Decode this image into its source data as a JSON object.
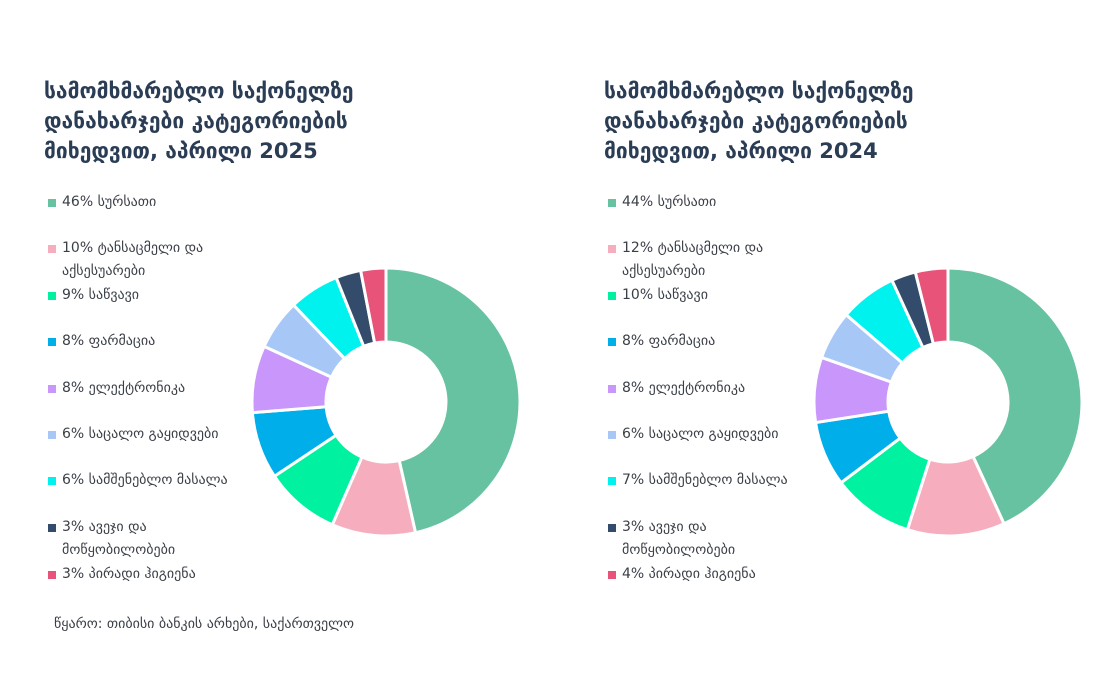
{
  "source": "წყარო: თიბისი ბანკის არხები, საქართველო",
  "colors": {
    "sursati": "#66c2a0",
    "tansacmeli": "#f6aebe",
    "sawvavi": "#00f2a1",
    "parmacia": "#00aeea",
    "elektronika": "#c996fb",
    "sacalo": "#a7c8f6",
    "samsheneblo": "#00f2ee",
    "aveji": "#344c6c",
    "hygiene": "#e8537a"
  },
  "chart_data": [
    {
      "type": "pie",
      "title": "სამომხმარებლო საქონელზე დანახარჯები კატეგორიების მიხედვით, აპრილი 2025",
      "categories": [
        "სურსათი",
        "ტანსაცმელი და აქსესუარები",
        "საწვავი",
        "ფარმაცია",
        "ელექტრონიკა",
        "საცალო გაყიდვები",
        "სამშენებლო მასალა",
        "ავეჯი და მოწყობილობები",
        "პირადი ჰიგიენა"
      ],
      "values": [
        46,
        10,
        9,
        8,
        8,
        6,
        6,
        3,
        3
      ],
      "legend": [
        "46% სურსათი",
        "10% ტანსაცმელი და აქსესუარები",
        "9% საწვავი",
        "8% ფარმაცია",
        "8% ელექტრონიკა",
        "6% საცალო გაყიდვები",
        "6% სამშენებლო მასალა",
        "3% ავეჯი და მოწყობილობები",
        "3% პირადი ჰიგიენა"
      ]
    },
    {
      "type": "pie",
      "title": "სამომხმარებლო საქონელზე დანახარჯები კატეგორიების მიხედვით, აპრილი 2024",
      "categories": [
        "სურსათი",
        "ტანსაცმელი და აქსესუარები",
        "საწვავი",
        "ფარმაცია",
        "ელექტრონიკა",
        "საცალო გაყიდვები",
        "სამშენებლო მასალა",
        "ავეჯი და მოწყობილობები",
        "პირადი ჰიგიენა"
      ],
      "values": [
        44,
        12,
        10,
        8,
        8,
        6,
        7,
        3,
        4
      ],
      "legend": [
        "44% სურსათი",
        "12% ტანსაცმელი და აქსესუარები",
        "10% საწვავი",
        "8% ფარმაცია",
        "8% ელექტრონიკა",
        "6% საცალო გაყიდვები",
        "7% სამშენებლო მასალა",
        "3% ავეჯი და მოწყობილობები",
        "4% პირადი ჰიგიენა"
      ]
    }
  ]
}
